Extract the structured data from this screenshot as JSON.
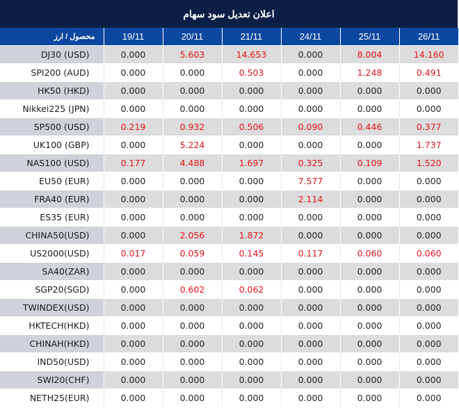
{
  "title": "اعلان تعدیل سود سهام",
  "colors": {
    "title_bg": "#0b1f45",
    "header_bg": "#0c47a0",
    "highlight_text": "#e3121b",
    "row_alt_bg": "#dcdcdc",
    "product_alt_bg": "#cfd2d8"
  },
  "table": {
    "headers": [
      "محصول / ارز",
      "19/11",
      "20/11",
      "21/11",
      "24/11",
      "25/11",
      "26/11"
    ],
    "rows": [
      {
        "product": "DJ30 (USD)",
        "values": [
          "0.000",
          "5.603",
          "14.653",
          "0.000",
          "8.004",
          "14.160"
        ]
      },
      {
        "product": "SPI200 (AUD)",
        "values": [
          "0.000",
          "0.000",
          "0.503",
          "0.000",
          "1.248",
          "0.491"
        ]
      },
      {
        "product": "HK50 (HKD)",
        "values": [
          "0.000",
          "0.000",
          "0.000",
          "0.000",
          "0.000",
          "0.000"
        ]
      },
      {
        "product": "Nikkei225 (JPN)",
        "values": [
          "0.000",
          "0.000",
          "0.000",
          "0.000",
          "0.000",
          "0.000"
        ]
      },
      {
        "product": "SP500 (USD)",
        "values": [
          "0.219",
          "0.932",
          "0.506",
          "0.090",
          "0.446",
          "0.377"
        ]
      },
      {
        "product": "UK100 (GBP)",
        "values": [
          "0.000",
          "5.224",
          "0.000",
          "0.000",
          "0.000",
          "1.737"
        ]
      },
      {
        "product": "NAS100 (USD)",
        "values": [
          "0.177",
          "4.488",
          "1.697",
          "0.325",
          "0.109",
          "1.520"
        ]
      },
      {
        "product": "EU50 (EUR)",
        "values": [
          "0.000",
          "0.000",
          "0.000",
          "7.577",
          "0.000",
          "0.000"
        ]
      },
      {
        "product": "FRA40 (EUR)",
        "values": [
          "0.000",
          "0.000",
          "0.000",
          "2.114",
          "0.000",
          "0.000"
        ]
      },
      {
        "product": "ES35 (EUR)",
        "values": [
          "0.000",
          "0.000",
          "0.000",
          "0.000",
          "0.000",
          "0.000"
        ]
      },
      {
        "product": "CHINA50(USD)",
        "values": [
          "0.000",
          "2.056",
          "1.872",
          "0.000",
          "0.000",
          "0.000"
        ]
      },
      {
        "product": "US2000(USD)",
        "values": [
          "0.017",
          "0.059",
          "0.145",
          "0.117",
          "0.060",
          "0.060"
        ]
      },
      {
        "product": "SA40(ZAR)",
        "values": [
          "0.000",
          "0.000",
          "0.000",
          "0.000",
          "0.000",
          "0.000"
        ]
      },
      {
        "product": "SGP20(SGD)",
        "values": [
          "0.000",
          "0.602",
          "0.062",
          "0.000",
          "0.000",
          "0.000"
        ]
      },
      {
        "product": "TWINDEX(USD)",
        "values": [
          "0.000",
          "0.000",
          "0.000",
          "0.000",
          "0.000",
          "0.000"
        ]
      },
      {
        "product": "HKTECH(HKD)",
        "values": [
          "0.000",
          "0.000",
          "0.000",
          "0.000",
          "0.000",
          "0.000"
        ]
      },
      {
        "product": "CHINAH(HKD)",
        "values": [
          "0.000",
          "0.000",
          "0.000",
          "0.000",
          "0.000",
          "0.000"
        ]
      },
      {
        "product": "IND50(USD)",
        "values": [
          "0.000",
          "0.000",
          "0.000",
          "0.000",
          "0.000",
          "0.000"
        ]
      },
      {
        "product": "SWI20(CHF)",
        "values": [
          "0.000",
          "0.000",
          "0.000",
          "0.000",
          "0.000",
          "0.000"
        ]
      },
      {
        "product": "NETH25(EUR)",
        "values": [
          "0.000",
          "0.000",
          "0.000",
          "0.000",
          "0.000",
          "0.000"
        ]
      }
    ]
  }
}
